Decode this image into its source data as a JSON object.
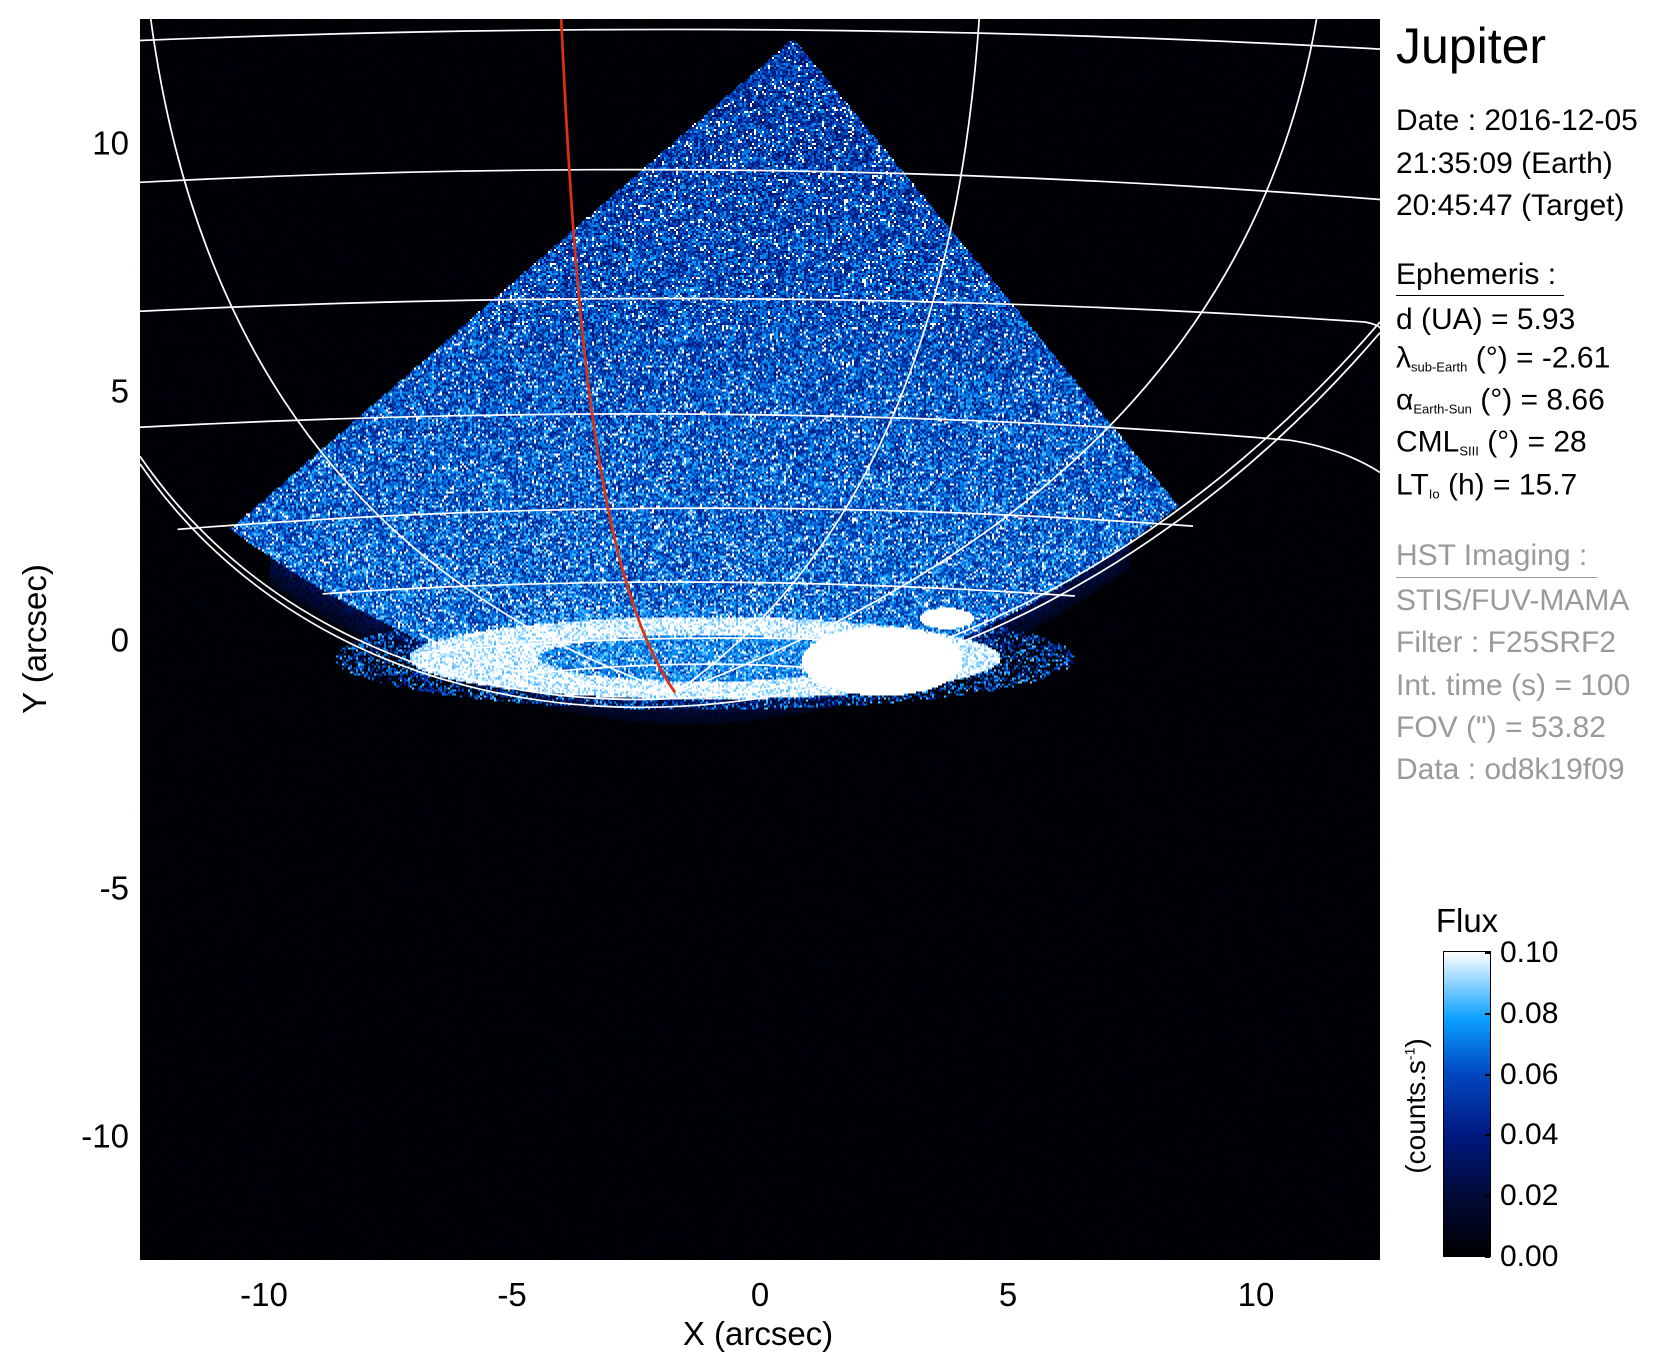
{
  "chart_data": {
    "type": "heatmap",
    "title": "Jupiter",
    "xlabel": "X (arcsec)",
    "ylabel": "Y (arcsec)",
    "xlim": [
      -12.5,
      12.5
    ],
    "ylim": [
      -12.5,
      12.5
    ],
    "xticks": [
      "-10",
      "-5",
      "0",
      "5",
      "10"
    ],
    "xtick_values": [
      -10,
      -5,
      0,
      5,
      10
    ],
    "yticks": [
      "10",
      "5",
      "0",
      "-5",
      "-10"
    ],
    "ytick_values": [
      10,
      5,
      0,
      -5,
      -10
    ],
    "grid": "planetographic latitude/longitude grid overlay",
    "colormap": [
      "#000000",
      "#000a38",
      "#001880",
      "#0048c0",
      "#0aa0ff",
      "#ffffff"
    ],
    "colorbar": {
      "title": "Flux",
      "label": "(counts.s",
      "label_sup": "-1",
      "label_close": ")",
      "range": [
        0.0,
        0.1
      ],
      "ticks": [
        "0.10",
        "0.08",
        "0.06",
        "0.04",
        "0.02",
        "0.00"
      ],
      "tick_values": [
        0.1,
        0.08,
        0.06,
        0.04,
        0.02,
        0.0
      ]
    },
    "overlay_colors": {
      "grid": "#ffffff",
      "io_footprint_line": "#e03010"
    }
  },
  "info": {
    "target": "Jupiter",
    "date": "Date : 2016-12-05",
    "earth_time": "21:35:09 (Earth)",
    "target_time": "20:45:47 (Target)",
    "ephemeris_header": "Ephemeris :",
    "d": "d (UA)    = 5.93",
    "lambda_sym": "λ",
    "lambda_sub": "sub-Earth",
    "lambda_rest": " (°) = -2.61",
    "alpha_sym": "α",
    "alpha_sub": "Earth-Sun",
    "alpha_rest": " (°) = 8.66",
    "cml_sym": "CML",
    "cml_sub": "SIII",
    "cml_rest": " (°) = 28",
    "lt_sym": "LT",
    "lt_sub": "Io",
    "lt_rest": " (h) = 15.7",
    "hst_header": "HST Imaging :",
    "instrument": "STIS/FUV-MAMA",
    "filter": "Filter : F25SRF2",
    "int_time": "Int. time (s) = 100",
    "fov": "FOV (\") = 53.82",
    "data": "Data : od8k19f09"
  }
}
